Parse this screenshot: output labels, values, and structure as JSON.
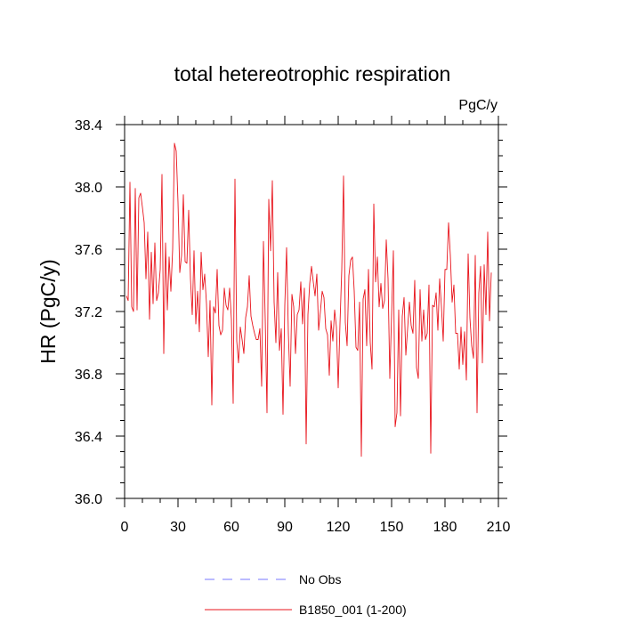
{
  "chart_data": {
    "type": "line",
    "title": "total hetereotrophic respiration",
    "units_label": "PgC/y",
    "ylabel": "HR  (PgC/y)",
    "xlabel": "",
    "xlim": [
      0,
      210
    ],
    "ylim": [
      36.0,
      38.4
    ],
    "x_ticks": [
      "0",
      "30",
      "60",
      "90",
      "120",
      "150",
      "180",
      "210"
    ],
    "y_ticks": [
      "36.0",
      "36.4",
      "36.8",
      "37.2",
      "37.6",
      "38.0",
      "38.4"
    ],
    "legend": [
      {
        "label": "No Obs",
        "color": "#7777ff",
        "style": "dashed"
      },
      {
        "label": "B1850_001 (1-200)",
        "color": "#e8141c",
        "style": "solid"
      }
    ],
    "series": [
      {
        "name": "B1850_001 (1-200)",
        "color": "#e8141c",
        "x_start": 1,
        "values": [
          37.3,
          37.27,
          38.03,
          37.23,
          37.2,
          37.99,
          37.21,
          37.93,
          37.96,
          37.87,
          37.77,
          37.41,
          37.71,
          37.15,
          37.58,
          37.25,
          37.64,
          37.27,
          37.32,
          37.47,
          38.08,
          36.93,
          37.64,
          37.21,
          37.55,
          37.33,
          37.6,
          38.28,
          38.23,
          37.9,
          37.45,
          37.56,
          37.95,
          37.52,
          37.51,
          37.85,
          37.41,
          37.18,
          37.59,
          37.12,
          37.33,
          37.07,
          37.58,
          37.34,
          37.44,
          37.25,
          36.91,
          37.27,
          36.6,
          37.23,
          37.19,
          37.47,
          37.11,
          37.05,
          37.08,
          37.35,
          37.24,
          37.21,
          37.35,
          37.15,
          36.61,
          38.05,
          37.01,
          36.87,
          37.1,
          37.02,
          36.93,
          37.16,
          37.23,
          37.43,
          37.17,
          37.11,
          37.06,
          37.02,
          37.02,
          37.09,
          36.72,
          37.65,
          37.15,
          36.55,
          37.92,
          37.59,
          38.04,
          37.26,
          37.0,
          37.45,
          36.95,
          37.09,
          36.54,
          37.24,
          37.61,
          37.06,
          36.72,
          37.31,
          37.23,
          36.93,
          37.18,
          37.21,
          37.39,
          37.12,
          37.35,
          36.35,
          37.18,
          37.38,
          37.49,
          37.39,
          37.3,
          37.44,
          37.08,
          37.2,
          37.33,
          37.29,
          37.09,
          37.05,
          36.79,
          37.14,
          37.01,
          37.21,
          37.1,
          36.71,
          37.12,
          37.47,
          38.07,
          37.13,
          36.98,
          37.43,
          37.53,
          37.55,
          37.33,
          36.97,
          36.95,
          37.26,
          36.27,
          37.28,
          37.34,
          36.98,
          37.47,
          37.0,
          36.83,
          37.89,
          37.39,
          37.55,
          37.23,
          37.38,
          37.22,
          37.27,
          37.66,
          37.41,
          36.77,
          37.18,
          37.59,
          36.46,
          36.55,
          37.21,
          36.53,
          37.17,
          37.29,
          36.92,
          37.09,
          37.26,
          37.11,
          37.06,
          37.4,
          36.84,
          36.77,
          37.34,
          37.01,
          37.21,
          37.02,
          37.06,
          37.37,
          36.29,
          37.24,
          37.23,
          37.32,
          37.08,
          37.41,
          37.23,
          37.01,
          37.47,
          37.47,
          37.77,
          37.56,
          37.26,
          37.37,
          37.06,
          37.06,
          36.83,
          37.1,
          36.86,
          37.07,
          36.76,
          37.57,
          37.16,
          36.98,
          36.9,
          37.56,
          36.55,
          37.32,
          37.49,
          36.87,
          37.5,
          37.18,
          37.71,
          37.14,
          37.45
        ]
      }
    ]
  }
}
